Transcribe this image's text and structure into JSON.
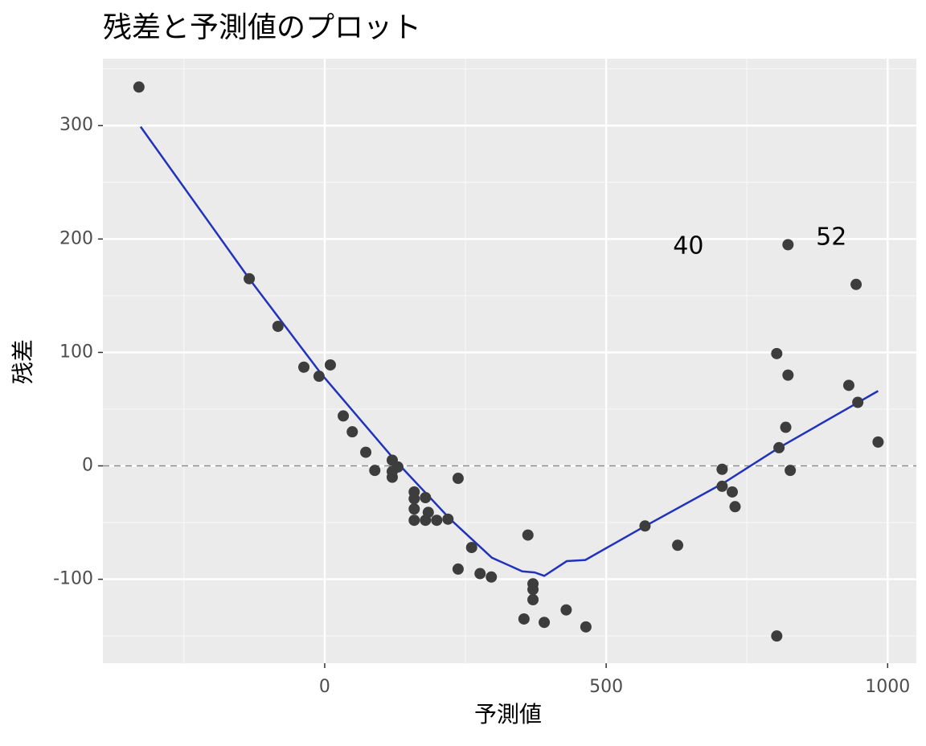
{
  "chart_data": {
    "type": "scatter",
    "title": "残差と予測値のプロット",
    "x_label": "予測値",
    "y_label": "残差",
    "xlim": [
      -394,
      1051
    ],
    "ylim": [
      -174,
      359
    ],
    "xticks": [
      0,
      500,
      1000
    ],
    "yticks": [
      -100,
      0,
      100,
      200,
      300
    ],
    "x_minor_grid": [
      -250,
      250,
      750
    ],
    "y_minor_grid": [
      -150,
      -50,
      50,
      150,
      250,
      350
    ],
    "grid": true,
    "hline": 0,
    "points": {
      "color": "#3d3d3d",
      "x": [
        -330,
        -134,
        -83,
        -37,
        -10,
        10,
        33,
        49,
        73,
        89,
        120,
        120,
        120,
        130,
        159,
        159,
        179,
        159,
        184,
        159,
        179,
        199,
        219,
        237,
        261,
        237,
        276,
        296,
        361,
        370,
        370,
        370,
        354,
        390,
        429,
        464,
        569,
        627,
        706,
        706,
        724,
        729,
        803,
        803,
        807,
        819,
        823,
        827,
        823,
        931,
        947,
        944,
        983
      ],
      "y": [
        334,
        165,
        123,
        87,
        79,
        89,
        44,
        30,
        12,
        -4,
        5,
        -5,
        -10,
        -1,
        -23,
        -29,
        -28,
        -38,
        -41,
        -48,
        -48,
        -48,
        -47,
        -11,
        -72,
        -91,
        -95,
        -98,
        -61,
        -104,
        -109,
        -118,
        -135,
        -138,
        -127,
        -142,
        -53,
        -70,
        -3,
        -18,
        -23,
        -36,
        -150,
        99,
        16,
        34,
        80,
        -4,
        195,
        71,
        56,
        160,
        21
      ]
    },
    "smooth": {
      "color": "#2233bb",
      "x": [
        -327,
        -134,
        -6,
        123,
        223,
        297,
        351,
        373,
        390,
        430,
        463,
        566,
        709,
        807,
        983
      ],
      "y": [
        299,
        165,
        81,
        6,
        -47,
        -81,
        -93,
        -94,
        -97,
        -84,
        -83,
        -54,
        -15,
        16,
        66
      ]
    },
    "annotations": [
      {
        "text": "40",
        "x": 646,
        "y": 193
      },
      {
        "text": "52",
        "x": 900,
        "y": 201
      }
    ]
  }
}
